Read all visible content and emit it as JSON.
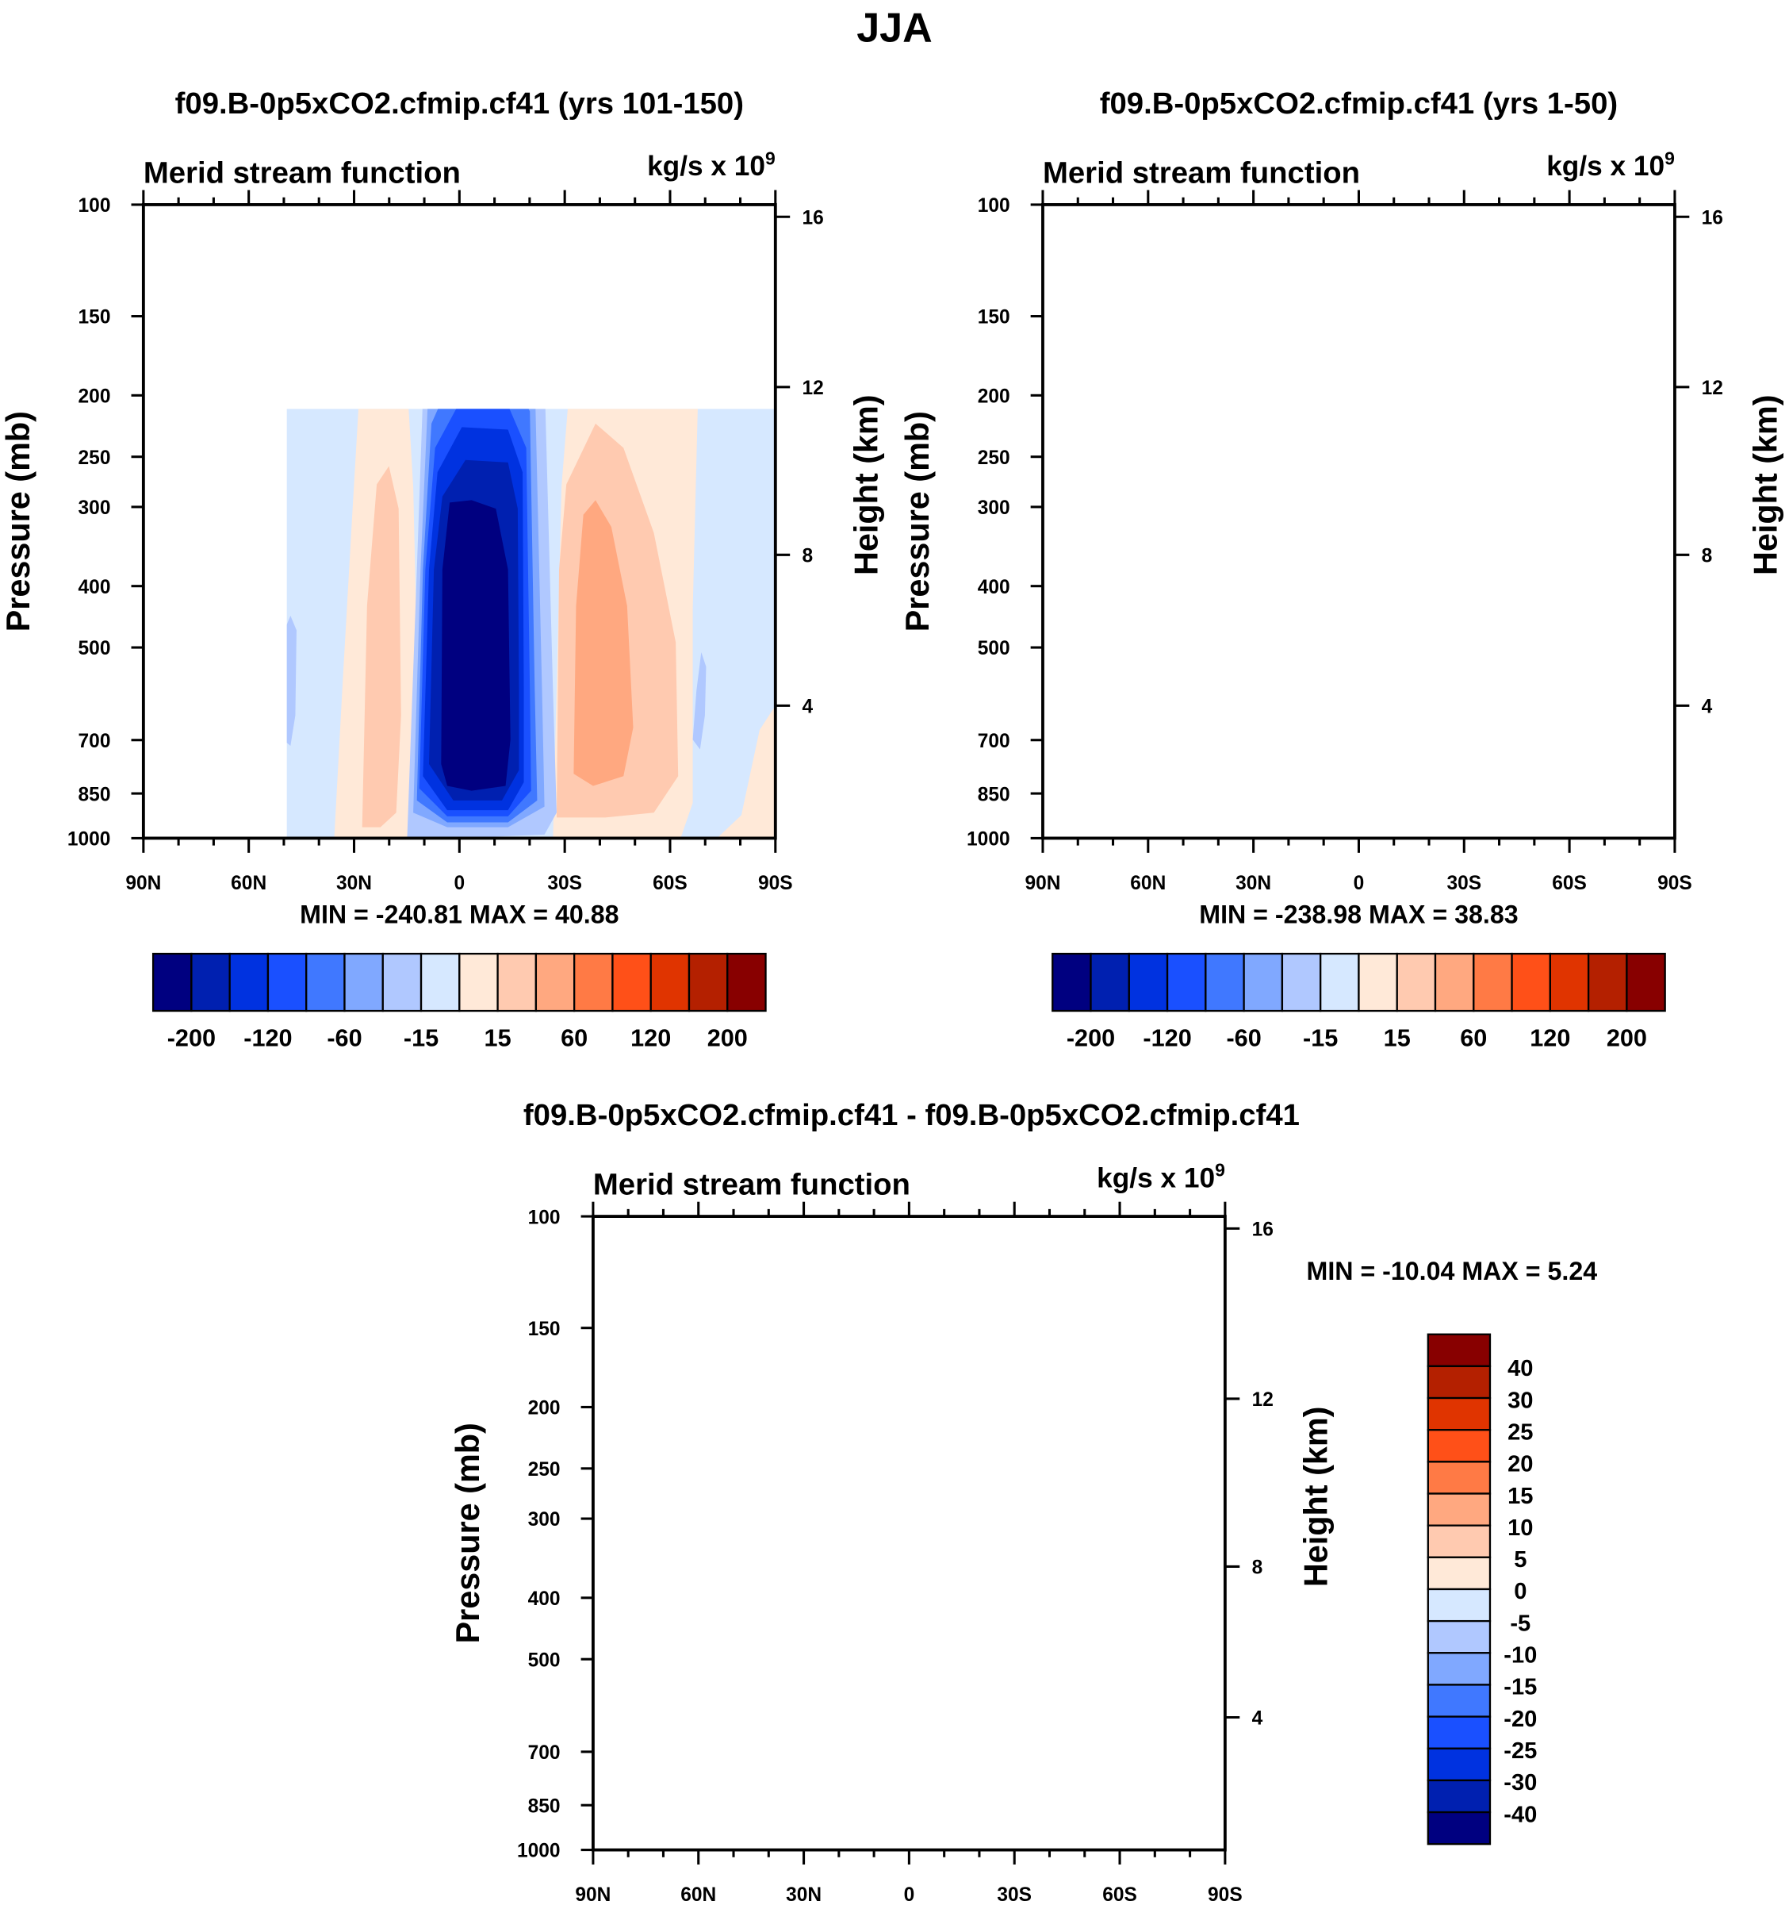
{
  "figure_title": "JJA",
  "chart_data": [
    {
      "type": "contour",
      "title": "f09.B-0p5xCO2.cfmip.cf41 (yrs 101-150)",
      "left_string": "Merid stream function",
      "units_base": "kg/s x 10",
      "units_exp": "9",
      "ylabel": "Pressure (mb)",
      "ylabel_right": "Height (km)",
      "x_ticks": [
        "90N",
        "60N",
        "30N",
        "0",
        "30S",
        "60S",
        "90S"
      ],
      "y_ticks": [
        "100",
        "150",
        "200",
        "250",
        "300",
        "400",
        "500",
        "700",
        "850",
        "1000"
      ],
      "y_ticks_right": [
        "16",
        "12",
        "8",
        "4"
      ],
      "min_max": "MIN = -240.81   MAX =  40.88",
      "colorbar_labels": [
        "-200",
        "-120",
        "-60",
        "-15",
        "15",
        "60",
        "120",
        "200"
      ],
      "ylim": [
        1000,
        100
      ],
      "xlim": [
        90,
        -90
      ]
    },
    {
      "type": "contour",
      "title": "f09.B-0p5xCO2.cfmip.cf41 (yrs 1-50)",
      "left_string": "Merid stream function",
      "units_base": "kg/s x 10",
      "units_exp": "9",
      "ylabel": "Pressure (mb)",
      "ylabel_right": "Height (km)",
      "x_ticks": [
        "90N",
        "60N",
        "30N",
        "0",
        "30S",
        "60S",
        "90S"
      ],
      "y_ticks": [
        "100",
        "150",
        "200",
        "250",
        "300",
        "400",
        "500",
        "700",
        "850",
        "1000"
      ],
      "y_ticks_right": [
        "16",
        "12",
        "8",
        "4"
      ],
      "min_max": "MIN = -238.98   MAX =  38.83",
      "colorbar_labels": [
        "-200",
        "-120",
        "-60",
        "-15",
        "15",
        "60",
        "120",
        "200"
      ],
      "ylim": [
        1000,
        100
      ],
      "xlim": [
        90,
        -90
      ]
    },
    {
      "type": "contour",
      "title": "f09.B-0p5xCO2.cfmip.cf41 - f09.B-0p5xCO2.cfmip.cf41",
      "left_string": "Merid stream function",
      "units_base": "kg/s x 10",
      "units_exp": "9",
      "ylabel": "Pressure (mb)",
      "ylabel_right": "Height (km)",
      "x_ticks": [
        "90N",
        "60N",
        "30N",
        "0",
        "30S",
        "60S",
        "90S"
      ],
      "y_ticks": [
        "100",
        "150",
        "200",
        "250",
        "300",
        "400",
        "500",
        "700",
        "850",
        "1000"
      ],
      "y_ticks_right": [
        "16",
        "12",
        "8",
        "4"
      ],
      "min_max": "MIN = -10.04   MAX =   5.24",
      "colorbar_labels": [
        "40",
        "30",
        "25",
        "20",
        "15",
        "10",
        "5",
        "0",
        "-5",
        "-10",
        "-15",
        "-20",
        "-25",
        "-30",
        "-40"
      ],
      "ylim": [
        1000,
        100
      ],
      "xlim": [
        90,
        -90
      ]
    }
  ],
  "colors": [
    "#000080",
    "#0020b0",
    "#0032e0",
    "#1a50ff",
    "#4078ff",
    "#80a8ff",
    "#b0c8ff",
    "#d6e8ff",
    "#ffe9d8",
    "#ffcab0",
    "#ffa880",
    "#ff7a45",
    "#ff5018",
    "#e03400",
    "#b42000",
    "#880000"
  ]
}
